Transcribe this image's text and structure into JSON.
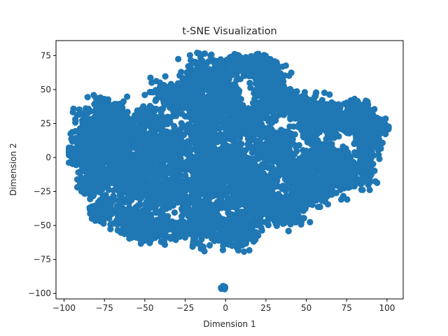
{
  "chart_data": {
    "type": "scatter",
    "title": "t-SNE Visualization",
    "xlabel": "Dimension 1",
    "ylabel": "Dimension 2",
    "xlim": [
      -105,
      110
    ],
    "ylim": [
      -104,
      86
    ],
    "xticks": [
      -100,
      -75,
      -50,
      -25,
      0,
      25,
      50,
      75,
      100
    ],
    "yticks": [
      -100,
      -75,
      -50,
      -25,
      0,
      25,
      50,
      75
    ],
    "xtick_labels": [
      "−100",
      "−75",
      "−50",
      "−25",
      "0",
      "25",
      "50",
      "75",
      "100"
    ],
    "ytick_labels": [
      "−100",
      "−75",
      "−50",
      "−25",
      "0",
      "25",
      "50",
      "75"
    ],
    "grid": false,
    "legend": "none",
    "marker_color": "#1f77b4",
    "series": [
      {
        "clusters": [
          {
            "cx": -95,
            "cy": 3,
            "sx": 2,
            "sy": 3,
            "n": 40
          },
          {
            "cx": -82,
            "cy": 15,
            "sx": 6,
            "sy": 12,
            "n": 420
          },
          {
            "cx": -76,
            "cy": 35,
            "sx": 3,
            "sy": 4,
            "n": 80
          },
          {
            "cx": -82,
            "cy": -18,
            "sx": 4,
            "sy": 5,
            "n": 120
          },
          {
            "cx": -77,
            "cy": -38,
            "sx": 3,
            "sy": 5,
            "n": 100
          },
          {
            "cx": -66,
            "cy": 30,
            "sx": 3,
            "sy": 6,
            "n": 80
          },
          {
            "cx": -60,
            "cy": 10,
            "sx": 9,
            "sy": 10,
            "n": 300
          },
          {
            "cx": -60,
            "cy": -15,
            "sx": 9,
            "sy": 10,
            "n": 320
          },
          {
            "cx": -58,
            "cy": -45,
            "sx": 6,
            "sy": 5,
            "n": 160
          },
          {
            "cx": -48,
            "cy": 28,
            "sx": 6,
            "sy": 4,
            "n": 120
          },
          {
            "cx": -42,
            "cy": -52,
            "sx": 8,
            "sy": 5,
            "n": 200
          },
          {
            "cx": -36,
            "cy": 10,
            "sx": 7,
            "sy": 8,
            "n": 200
          },
          {
            "cx": -35,
            "cy": -20,
            "sx": 8,
            "sy": 12,
            "n": 300
          },
          {
            "cx": -28,
            "cy": 45,
            "sx": 8,
            "sy": 6,
            "n": 220
          },
          {
            "cx": -15,
            "cy": 62,
            "sx": 6,
            "sy": 6,
            "n": 160
          },
          {
            "cx": -12,
            "cy": 30,
            "sx": 6,
            "sy": 10,
            "n": 200
          },
          {
            "cx": -10,
            "cy": -10,
            "sx": 8,
            "sy": 12,
            "n": 320
          },
          {
            "cx": -10,
            "cy": -45,
            "sx": 8,
            "sy": 10,
            "n": 300
          },
          {
            "cx": 0,
            "cy": 45,
            "sx": 5,
            "sy": 8,
            "n": 180
          },
          {
            "cx": 5,
            "cy": -5,
            "sx": 8,
            "sy": 14,
            "n": 360
          },
          {
            "cx": 8,
            "cy": -55,
            "sx": 6,
            "sy": 5,
            "n": 160
          },
          {
            "cx": 15,
            "cy": 68,
            "sx": 9,
            "sy": 4,
            "n": 240
          },
          {
            "cx": 12,
            "cy": 25,
            "sx": 7,
            "sy": 6,
            "n": 220
          },
          {
            "cx": 18,
            "cy": -30,
            "sx": 7,
            "sy": 10,
            "n": 260
          },
          {
            "cx": 28,
            "cy": 48,
            "sx": 6,
            "sy": 8,
            "n": 200
          },
          {
            "cx": 30,
            "cy": 5,
            "sx": 6,
            "sy": 10,
            "n": 240
          },
          {
            "cx": 38,
            "cy": -40,
            "sx": 6,
            "sy": 6,
            "n": 160
          },
          {
            "cx": 42,
            "cy": 38,
            "sx": 5,
            "sy": 4,
            "n": 120
          },
          {
            "cx": 45,
            "cy": -15,
            "sx": 5,
            "sy": 8,
            "n": 160
          },
          {
            "cx": 55,
            "cy": 30,
            "sx": 6,
            "sy": 8,
            "n": 200
          },
          {
            "cx": 58,
            "cy": -2,
            "sx": 6,
            "sy": 8,
            "n": 200
          },
          {
            "cx": 55,
            "cy": -28,
            "sx": 5,
            "sy": 4,
            "n": 100
          },
          {
            "cx": 72,
            "cy": 28,
            "sx": 6,
            "sy": 6,
            "n": 180
          },
          {
            "cx": 72,
            "cy": -10,
            "sx": 6,
            "sy": 8,
            "n": 200
          },
          {
            "cx": 85,
            "cy": 30,
            "sx": 4,
            "sy": 5,
            "n": 140
          },
          {
            "cx": 88,
            "cy": 12,
            "sx": 4,
            "sy": 6,
            "n": 140
          },
          {
            "cx": 95,
            "cy": 24,
            "sx": 3,
            "sy": 3,
            "n": 60
          },
          {
            "cx": 86,
            "cy": -10,
            "sx": 3,
            "sy": 6,
            "n": 80
          },
          {
            "cx": -1,
            "cy": -96,
            "sx": 0.8,
            "sy": 0.6,
            "n": 12
          }
        ]
      }
    ]
  }
}
